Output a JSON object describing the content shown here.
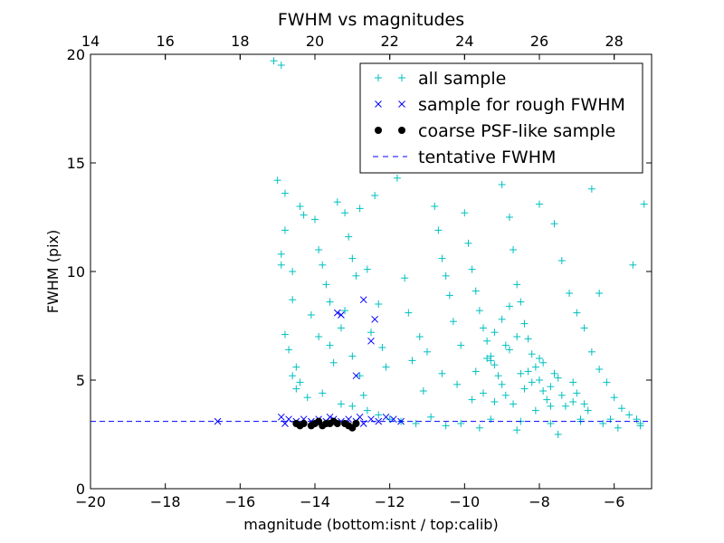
{
  "chart_data": {
    "type": "scatter",
    "title": "FWHM vs magnitudes",
    "xlabel": "magnitude (bottom:isnt / top:calib)",
    "ylabel": "FWHM (pix)",
    "xlim": [
      -20,
      -5
    ],
    "ylim": [
      0,
      20
    ],
    "x_ticks": [
      -20,
      -18,
      -16,
      -14,
      -12,
      -10,
      -8,
      -6
    ],
    "x_tick_labels": [
      "−20",
      "−18",
      "−16",
      "−14",
      "−12",
      "−10",
      "−8",
      "−6"
    ],
    "y_ticks": [
      0,
      5,
      10,
      15,
      20
    ],
    "y_tick_labels": [
      "0",
      "5",
      "10",
      "15",
      "20"
    ],
    "top_axis": {
      "ticks": [
        14,
        16,
        18,
        20,
        22,
        24,
        26,
        28
      ],
      "tick_labels": [
        "14",
        "16",
        "18",
        "20",
        "22",
        "24",
        "26",
        "28"
      ],
      "offset_from_bottom": 34
    },
    "grid": false,
    "legend_position": "top-right",
    "colors": {
      "all_sample": "#00bfbf",
      "rough_sample": "#0000ff",
      "psf_sample": "#000000",
      "tentative_line": "#0000ff"
    },
    "tentative_fwhm": 3.1,
    "series": [
      {
        "name": "all sample",
        "marker": "+",
        "points": [
          [
            -15.1,
            19.7
          ],
          [
            -14.9,
            19.5
          ],
          [
            -15.0,
            14.2
          ],
          [
            -14.8,
            13.6
          ],
          [
            -14.8,
            11.9
          ],
          [
            -14.9,
            10.8
          ],
          [
            -14.9,
            10.3
          ],
          [
            -14.6,
            10.0
          ],
          [
            -14.6,
            8.7
          ],
          [
            -14.8,
            7.1
          ],
          [
            -14.7,
            6.4
          ],
          [
            -14.5,
            5.6
          ],
          [
            -14.6,
            5.2
          ],
          [
            -14.4,
            4.9
          ],
          [
            -14.5,
            4.6
          ],
          [
            -14.4,
            13.0
          ],
          [
            -14.3,
            12.6
          ],
          [
            -14.0,
            12.4
          ],
          [
            -13.9,
            11.0
          ],
          [
            -13.8,
            10.3
          ],
          [
            -13.7,
            9.4
          ],
          [
            -13.6,
            8.6
          ],
          [
            -14.1,
            8.0
          ],
          [
            -13.9,
            7.0
          ],
          [
            -13.6,
            6.6
          ],
          [
            -13.5,
            5.8
          ],
          [
            -13.4,
            13.2
          ],
          [
            -13.2,
            12.7
          ],
          [
            -12.8,
            12.9
          ],
          [
            -13.1,
            11.6
          ],
          [
            -13.0,
            10.6
          ],
          [
            -12.9,
            9.8
          ],
          [
            -13.2,
            8.2
          ],
          [
            -13.3,
            7.4
          ],
          [
            -13.0,
            6.1
          ],
          [
            -12.8,
            5.2
          ],
          [
            -12.4,
            13.5
          ],
          [
            -12.6,
            10.1
          ],
          [
            -12.3,
            8.5
          ],
          [
            -12.5,
            7.2
          ],
          [
            -12.2,
            6.5
          ],
          [
            -12.1,
            5.6
          ],
          [
            -11.8,
            14.3
          ],
          [
            -11.6,
            9.7
          ],
          [
            -11.5,
            8.1
          ],
          [
            -11.2,
            7.0
          ],
          [
            -11.0,
            6.3
          ],
          [
            -10.8,
            13.0
          ],
          [
            -10.7,
            11.9
          ],
          [
            -10.6,
            10.6
          ],
          [
            -10.5,
            9.8
          ],
          [
            -10.4,
            8.9
          ],
          [
            -10.3,
            7.7
          ],
          [
            -10.1,
            6.6
          ],
          [
            -10.0,
            12.7
          ],
          [
            -9.9,
            11.3
          ],
          [
            -9.8,
            10.1
          ],
          [
            -9.7,
            9.1
          ],
          [
            -9.6,
            8.2
          ],
          [
            -9.5,
            7.4
          ],
          [
            -9.4,
            6.8
          ],
          [
            -9.3,
            6.1
          ],
          [
            -9.2,
            5.7
          ],
          [
            -9.1,
            5.2
          ],
          [
            -9.0,
            4.8
          ],
          [
            -9.0,
            14.0
          ],
          [
            -8.8,
            12.5
          ],
          [
            -8.7,
            11.0
          ],
          [
            -8.6,
            9.4
          ],
          [
            -8.5,
            8.6
          ],
          [
            -8.4,
            7.6
          ],
          [
            -8.3,
            6.9
          ],
          [
            -8.2,
            6.2
          ],
          [
            -8.1,
            5.6
          ],
          [
            -8.0,
            5.0
          ],
          [
            -7.9,
            4.5
          ],
          [
            -7.8,
            4.1
          ],
          [
            -7.7,
            3.8
          ],
          [
            -8.0,
            13.1
          ],
          [
            -7.6,
            12.2
          ],
          [
            -7.4,
            10.5
          ],
          [
            -7.2,
            9.0
          ],
          [
            -7.0,
            8.1
          ],
          [
            -6.8,
            7.4
          ],
          [
            -6.6,
            6.3
          ],
          [
            -6.4,
            5.5
          ],
          [
            -6.2,
            4.9
          ],
          [
            -6.0,
            4.2
          ],
          [
            -5.8,
            3.7
          ],
          [
            -5.6,
            3.4
          ],
          [
            -6.6,
            13.8
          ],
          [
            -6.4,
            9.0
          ],
          [
            -5.2,
            13.1
          ],
          [
            -5.5,
            10.3
          ],
          [
            -5.3,
            2.9
          ],
          [
            -6.9,
            3.2
          ],
          [
            -7.5,
            2.5
          ],
          [
            -8.6,
            2.7
          ],
          [
            -9.6,
            2.8
          ],
          [
            -10.5,
            2.9
          ],
          [
            -11.3,
            3.0
          ],
          [
            -12.0,
            3.2
          ],
          [
            -9.8,
            4.1
          ],
          [
            -9.5,
            4.4
          ],
          [
            -9.2,
            4.0
          ],
          [
            -8.9,
            4.3
          ],
          [
            -8.7,
            3.9
          ],
          [
            -8.4,
            4.6
          ],
          [
            -8.1,
            3.6
          ],
          [
            -7.7,
            4.7
          ],
          [
            -7.3,
            3.8
          ],
          [
            -7.0,
            4.4
          ],
          [
            -9.7,
            5.4
          ],
          [
            -9.3,
            5.9
          ],
          [
            -8.8,
            6.4
          ],
          [
            -8.5,
            5.3
          ],
          [
            -8.2,
            4.9
          ],
          [
            -7.9,
            5.8
          ],
          [
            -7.5,
            5.1
          ],
          [
            -7.1,
            4.9
          ],
          [
            -10.2,
            4.8
          ],
          [
            -10.6,
            5.3
          ],
          [
            -11.1,
            4.5
          ],
          [
            -11.4,
            5.9
          ],
          [
            -6.7,
            3.6
          ],
          [
            -6.3,
            3.0
          ],
          [
            -5.9,
            2.8
          ],
          [
            -5.4,
            3.2
          ],
          [
            -12.3,
            3.4
          ],
          [
            -11.7,
            3.1
          ],
          [
            -10.9,
            3.3
          ],
          [
            -10.1,
            3.0
          ],
          [
            -9.3,
            3.2
          ],
          [
            -8.5,
            3.1
          ],
          [
            -7.7,
            3.0
          ],
          [
            -6.9,
            3.1
          ],
          [
            -6.1,
            3.2
          ],
          [
            -5.3,
            3.0
          ],
          [
            -14.2,
            4.2
          ],
          [
            -13.8,
            4.4
          ],
          [
            -13.3,
            3.9
          ],
          [
            -12.7,
            4.3
          ],
          [
            -12.6,
            3.6
          ],
          [
            -13.0,
            3.8
          ],
          [
            -9.0,
            7.8
          ],
          [
            -8.8,
            8.4
          ],
          [
            -9.2,
            7.2
          ],
          [
            -8.6,
            7.0
          ],
          [
            -8.9,
            6.6
          ],
          [
            -9.4,
            6.0
          ],
          [
            -8.3,
            5.4
          ],
          [
            -8.0,
            6.0
          ],
          [
            -7.6,
            5.3
          ],
          [
            -7.4,
            4.3
          ],
          [
            -7.1,
            4.0
          ],
          [
            -6.8,
            3.9
          ]
        ]
      },
      {
        "name": "sample for rough FWHM",
        "marker": "x",
        "points": [
          [
            -16.6,
            3.1
          ],
          [
            -14.9,
            3.3
          ],
          [
            -14.7,
            3.2
          ],
          [
            -14.5,
            3.1
          ],
          [
            -14.3,
            3.2
          ],
          [
            -14.1,
            3.1
          ],
          [
            -13.9,
            3.2
          ],
          [
            -13.7,
            3.1
          ],
          [
            -13.5,
            3.2
          ],
          [
            -13.3,
            3.1
          ],
          [
            -13.1,
            3.2
          ],
          [
            -12.9,
            3.1
          ],
          [
            -12.7,
            3.0
          ],
          [
            -12.5,
            3.2
          ],
          [
            -12.3,
            3.1
          ],
          [
            -12.1,
            3.3
          ],
          [
            -11.9,
            3.2
          ],
          [
            -11.7,
            3.1
          ],
          [
            -13.4,
            8.1
          ],
          [
            -13.3,
            8.0
          ],
          [
            -12.7,
            8.7
          ],
          [
            -12.4,
            7.8
          ],
          [
            -12.5,
            6.8
          ],
          [
            -12.9,
            5.2
          ],
          [
            -14.8,
            3.0
          ],
          [
            -13.6,
            3.3
          ],
          [
            -12.8,
            3.3
          ]
        ]
      },
      {
        "name": "coarse PSF-like sample",
        "marker": "o",
        "points": [
          [
            -14.5,
            3.0
          ],
          [
            -14.3,
            3.0
          ],
          [
            -14.1,
            2.9
          ],
          [
            -13.9,
            3.1
          ],
          [
            -13.8,
            2.9
          ],
          [
            -13.6,
            3.0
          ],
          [
            -13.5,
            3.1
          ],
          [
            -13.4,
            3.0
          ],
          [
            -13.2,
            3.0
          ],
          [
            -13.1,
            2.9
          ],
          [
            -13.0,
            2.8
          ],
          [
            -12.9,
            3.0
          ],
          [
            -14.4,
            2.9
          ],
          [
            -14.0,
            3.0
          ],
          [
            -13.7,
            3.0
          ]
        ]
      },
      {
        "name": "tentative FWHM",
        "line_style": "dashed",
        "y": 3.1
      }
    ]
  }
}
